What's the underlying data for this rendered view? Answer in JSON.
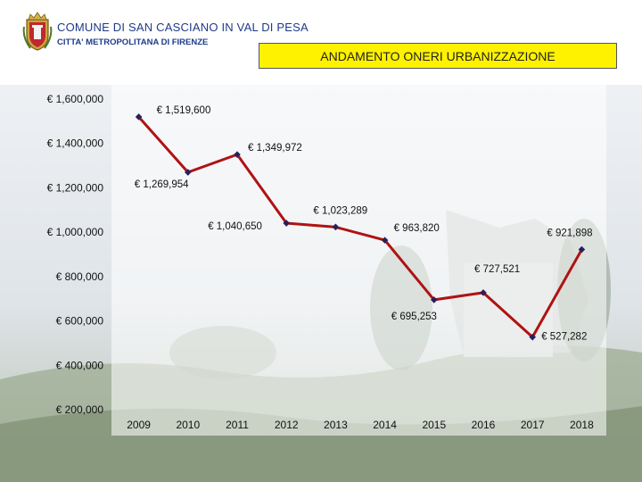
{
  "header": {
    "org_title": "COMUNE DI SAN CASCIANO IN VAL DI PESA",
    "org_subtitle": "CITTA' METROPOLITANA DI FIRENZE",
    "chart_title": "ANDAMENTO ONERI URBANIZZAZIONE"
  },
  "colors": {
    "line": "#b01212",
    "marker": "#2a1f5c",
    "title_box": "#fff200",
    "org_text": "#1f3b8a"
  },
  "chart_data": {
    "type": "line",
    "title": "ANDAMENTO ONERI URBANIZZAZIONE",
    "xlabel": "",
    "ylabel": "",
    "categories": [
      "2009",
      "2010",
      "2011",
      "2012",
      "2013",
      "2014",
      "2015",
      "2016",
      "2017",
      "2018"
    ],
    "series": [
      {
        "values": [
          1519600,
          1269954,
          1349972,
          1040650,
          1023289,
          963820,
          695253,
          727521,
          527282,
          921898
        ],
        "labels": [
          "€ 1,519,600",
          "€ 1,269,954",
          "€ 1,349,972",
          "€ 1,040,650",
          "€ 1,023,289",
          "€ 963,820",
          "€ 695,253",
          "€ 727,521",
          "€ 527,282",
          "€ 921,898"
        ]
      }
    ],
    "ylim": [
      200000,
      1600000
    ],
    "yticks": [
      200000,
      400000,
      600000,
      800000,
      1000000,
      1200000,
      1400000,
      1600000
    ],
    "ytick_labels": [
      "€ 200,000",
      "€ 400,000",
      "€ 600,000",
      "€ 800,000",
      "€ 1,000,000",
      "€ 1,200,000",
      "€ 1,400,000",
      "€ 1,600,000"
    ],
    "grid": false,
    "legend": "none"
  }
}
